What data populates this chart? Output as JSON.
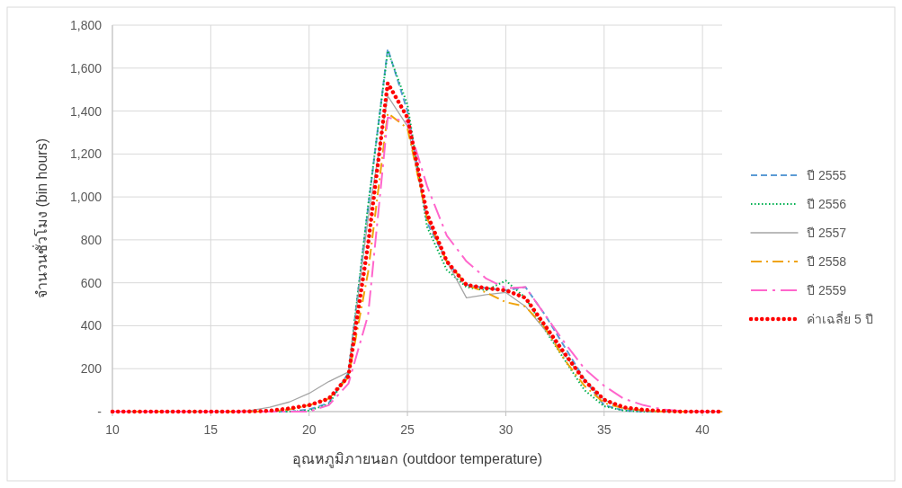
{
  "chart_data": {
    "type": "line",
    "xlabel": "อุณหภูมิภายนอก (outdoor temperature)",
    "ylabel": "จำนวนชั่วโมง (bin hours)",
    "x": [
      10,
      11,
      12,
      13,
      14,
      15,
      16,
      17,
      18,
      19,
      20,
      21,
      22,
      23,
      24,
      25,
      26,
      27,
      28,
      29,
      30,
      31,
      32,
      33,
      34,
      35,
      36,
      37,
      38,
      39,
      40,
      41
    ],
    "xlim": [
      10,
      41
    ],
    "xticks": [
      10,
      15,
      20,
      25,
      30,
      35,
      40
    ],
    "ylim": [
      0,
      1800
    ],
    "yticks": [
      {
        "value": 0,
        "label": "-"
      },
      {
        "value": 200,
        "label": "200"
      },
      {
        "value": 400,
        "label": "400"
      },
      {
        "value": 600,
        "label": "600"
      },
      {
        "value": 800,
        "label": "800"
      },
      {
        "value": 1000,
        "label": "1,000"
      },
      {
        "value": 1200,
        "label": "1,200"
      },
      {
        "value": 1400,
        "label": "1,400"
      },
      {
        "value": 1600,
        "label": "1,600"
      },
      {
        "value": 1800,
        "label": "1,800"
      }
    ],
    "grid": true,
    "legend": "right",
    "marker": "none",
    "series": [
      {
        "name": "ปี 2555",
        "color": "#5b9bd5",
        "line_style": "dashed",
        "values": [
          null,
          null,
          null,
          null,
          null,
          null,
          null,
          0,
          0,
          0,
          10,
          40,
          180,
          950,
          1690,
          1400,
          880,
          700,
          590,
          575,
          565,
          580,
          450,
          300,
          150,
          30,
          5,
          0,
          0,
          0,
          null,
          null
        ]
      },
      {
        "name": "ปี 2556",
        "color": "#00b050",
        "line_style": "dotted",
        "values": [
          null,
          null,
          null,
          null,
          null,
          null,
          null,
          0,
          0,
          0,
          5,
          35,
          175,
          960,
          1680,
          1430,
          860,
          660,
          580,
          565,
          610,
          530,
          380,
          240,
          100,
          25,
          5,
          0,
          0,
          0,
          null,
          null
        ]
      },
      {
        "name": "ปี 2557",
        "color": "#a5a5a5",
        "line_style": "solid",
        "values": [
          0,
          0,
          0,
          0,
          0,
          0,
          0,
          5,
          20,
          45,
          85,
          140,
          185,
          900,
          1470,
          1330,
          900,
          700,
          530,
          545,
          555,
          490,
          380,
          260,
          150,
          55,
          15,
          3,
          0,
          0,
          0,
          0
        ]
      },
      {
        "name": "ปี 2558",
        "color": "#f0a30a",
        "line_style": "dashdot",
        "values": [
          0,
          0,
          0,
          0,
          0,
          0,
          0,
          0,
          0,
          10,
          30,
          60,
          160,
          650,
          1390,
          1320,
          900,
          700,
          590,
          555,
          510,
          490,
          390,
          240,
          120,
          40,
          15,
          5,
          0,
          0,
          0,
          0
        ]
      },
      {
        "name": "ปี 2559",
        "color": "#ff66cc",
        "line_style": "longdashdot",
        "values": [
          0,
          0,
          0,
          0,
          0,
          0,
          0,
          0,
          0,
          0,
          0,
          30,
          130,
          450,
          1370,
          1350,
          1050,
          820,
          700,
          620,
          575,
          580,
          450,
          320,
          200,
          120,
          60,
          30,
          10,
          2,
          0,
          0
        ]
      },
      {
        "name": "ค่าเฉลี่ย 5 ปี",
        "color": "#ff0000",
        "line_style": "bigdotted",
        "values": [
          0,
          0,
          0,
          0,
          0,
          0,
          0,
          1,
          4,
          15,
          30,
          60,
          165,
          780,
          1530,
          1370,
          920,
          700,
          590,
          575,
          565,
          530,
          400,
          270,
          145,
          55,
          20,
          8,
          3,
          0,
          0,
          0
        ]
      }
    ]
  }
}
